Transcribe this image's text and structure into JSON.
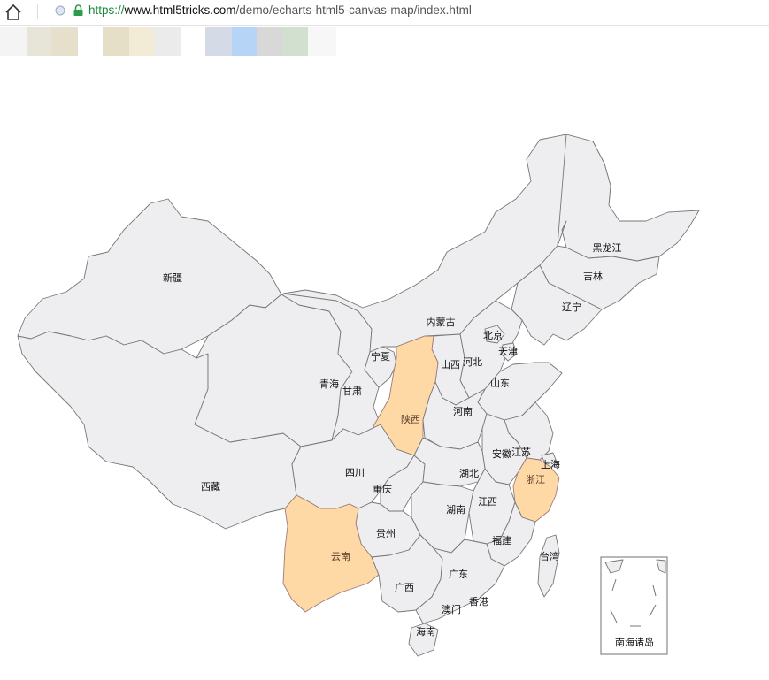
{
  "browser": {
    "url_scheme": "https://",
    "url_host": "www.html5tricks.com",
    "url_path": "/demo/echarts-html5-canvas-map/index.html",
    "bookmark_colors": [
      "#f4f4f4",
      "#e7e4d8",
      "#e6dfcc",
      "#ffffff",
      "#e6dfc8",
      "#f2ecd6",
      "#ebebeb",
      "#ffffff",
      "#d5dbe6",
      "#b6d4f5",
      "#d8d8d8",
      "#d2e0d0",
      "#f7f7f7"
    ]
  },
  "map": {
    "colors": {
      "default_fill": "#eeeef0",
      "highlight_fill": "#fed9a6",
      "border": "#777777"
    },
    "highlighted": [
      "陕西",
      "云南",
      "浙江"
    ],
    "labels": {
      "xinjiang": "新疆",
      "xizang": "西藏",
      "qinghai": "青海",
      "gansu": "甘肃",
      "ningxia": "宁夏",
      "neimenggu": "内蒙古",
      "heilongjiang": "黑龙江",
      "jilin": "吉林",
      "liaoning": "辽宁",
      "beijing": "北京",
      "tianjin": "天津",
      "hebei": "河北",
      "shanxi": "山西",
      "shandong": "山东",
      "shaanxi": "陕西",
      "henan": "河南",
      "sichuan": "四川",
      "chongqing": "重庆",
      "hubei": "湖北",
      "anhui": "安徽",
      "jiangsu": "江苏",
      "shanghai": "上海",
      "zhejiang": "浙江",
      "hunan": "湖南",
      "jiangxi": "江西",
      "guizhou": "贵州",
      "yunnan": "云南",
      "guangxi": "广西",
      "guangdong": "广东",
      "fujian": "福建",
      "taiwan": "台湾",
      "aomen": "澳门",
      "xianggang": "香港",
      "hainan": "海南",
      "nanhai": "南海诸岛"
    }
  }
}
